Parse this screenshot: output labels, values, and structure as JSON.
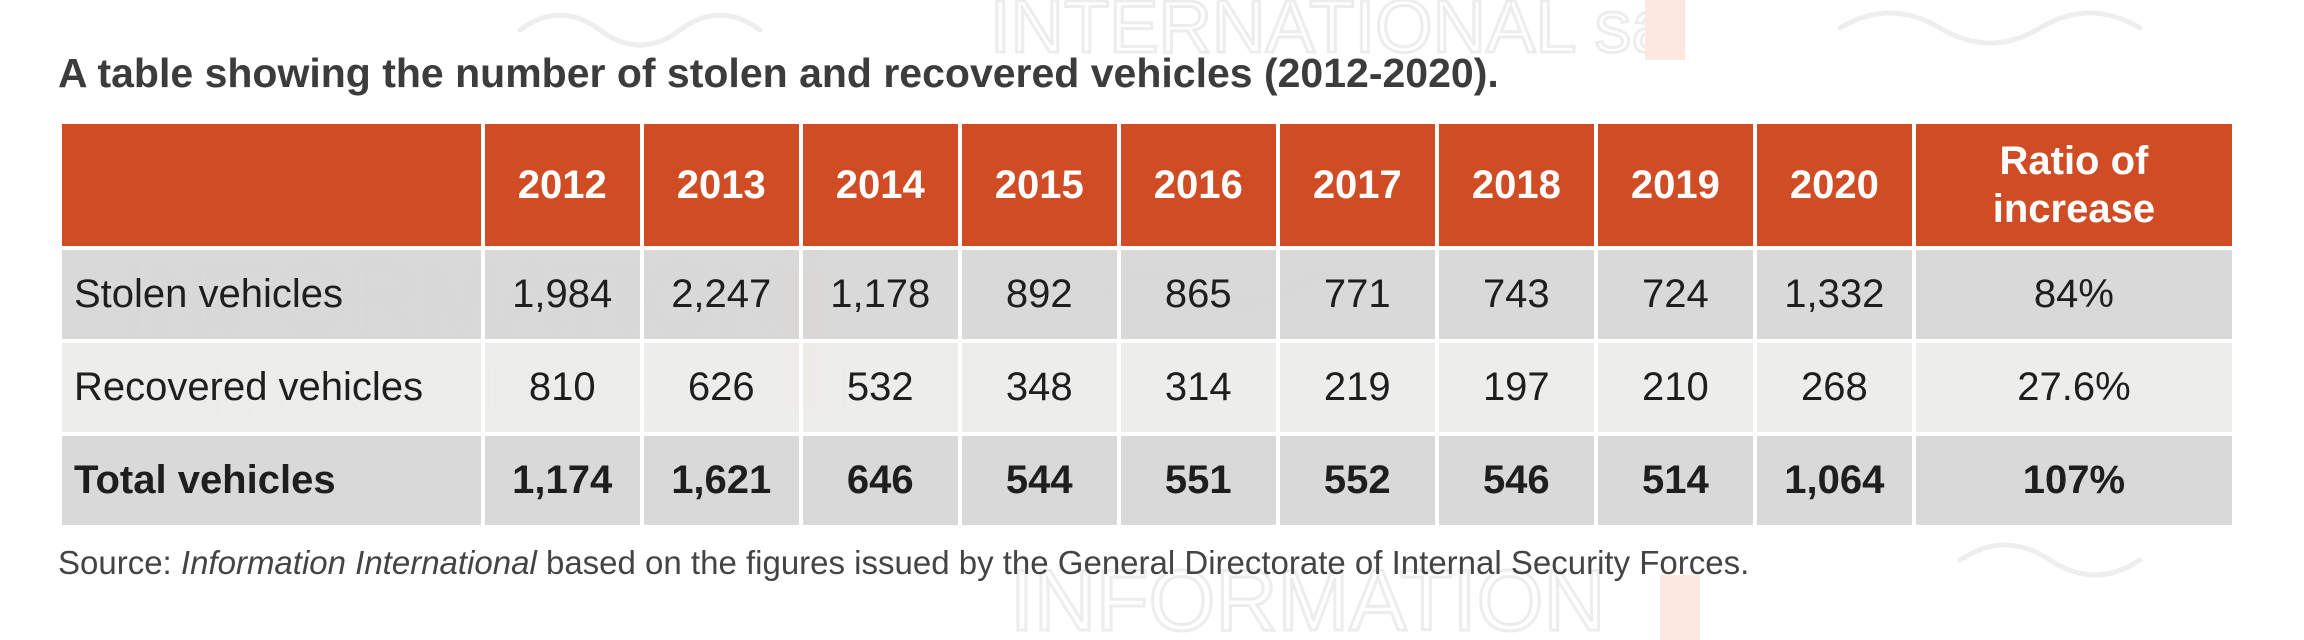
{
  "chart_data": {
    "type": "table",
    "title": "A table showing the number of stolen and recovered vehicles (2012-2020).",
    "columns": [
      "",
      "2012",
      "2013",
      "2014",
      "2015",
      "2016",
      "2017",
      "2018",
      "2019",
      "2020",
      "Ratio of increase"
    ],
    "rows": [
      {
        "label": "Stolen vehicles",
        "values": [
          "1,984",
          "2,247",
          "1,178",
          "892",
          "865",
          "771",
          "743",
          "724",
          "1,332"
        ],
        "ratio": "84%"
      },
      {
        "label": "Recovered vehicles",
        "values": [
          "810",
          "626",
          "532",
          "348",
          "314",
          "219",
          "197",
          "210",
          "268"
        ],
        "ratio": "27.6%"
      },
      {
        "label": "Total vehicles",
        "values": [
          "1,174",
          "1,621",
          "646",
          "544",
          "551",
          "552",
          "546",
          "514",
          "1,064"
        ],
        "ratio": "107%"
      }
    ],
    "source_prefix": "Source: ",
    "source_italic": "Information International",
    "source_suffix": " based on the figures issued by the General Directorate of Internal Security Forces."
  },
  "watermark": {
    "brand_text": "INFORMATION",
    "brand_subtext": "INTERNATIONAL sal",
    "logo_text": "NAT"
  },
  "colors": {
    "header_bg": "#d04c24",
    "header_text": "#ffffff",
    "row_dark": "#d6d6d6",
    "row_light": "#ececea",
    "watermark_gray": "#e6e6e6",
    "watermark_orange": "#f9e4d8"
  }
}
